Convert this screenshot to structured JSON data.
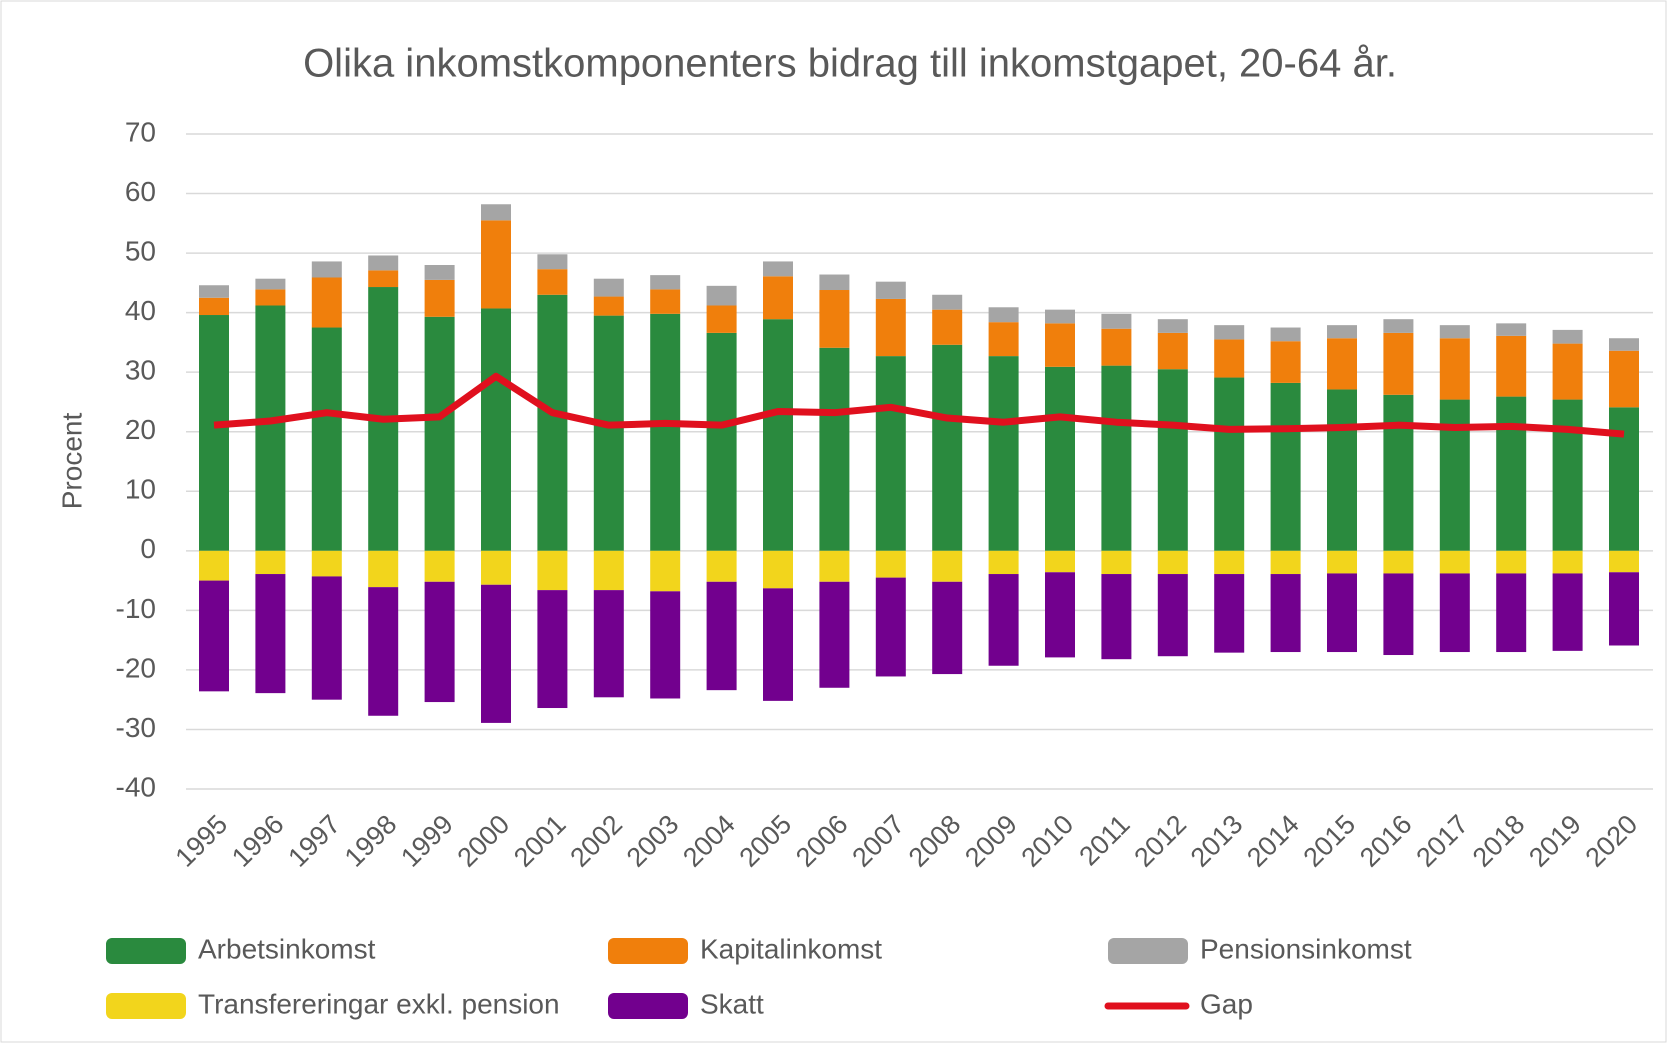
{
  "chart_data": {
    "type": "bar",
    "stacked": true,
    "title": "Olika inkomstkomponenters bidrag till inkomstgapet, 20-64 år.",
    "y_label": "Procent",
    "categories": [
      "1995",
      "1996",
      "1997",
      "1998",
      "1999",
      "2000",
      "2001",
      "2002",
      "2003",
      "2004",
      "2005",
      "2006",
      "2007",
      "2008",
      "2009",
      "2010",
      "2011",
      "2012",
      "2013",
      "2014",
      "2015",
      "2016",
      "2017",
      "2018",
      "2019",
      "2020"
    ],
    "ylim": [
      -40,
      70
    ],
    "yticks": [
      -40,
      -30,
      -20,
      -10,
      0,
      10,
      20,
      30,
      40,
      50,
      60,
      70
    ],
    "grid": true,
    "legend": "bottom",
    "series": [
      {
        "name": "Arbetsinkomst",
        "color": "#2a8a3e",
        "type": "bar",
        "values": [
          39.6,
          41.2,
          37.5,
          44.3,
          39.3,
          40.7,
          43,
          39.5,
          39.8,
          36.6,
          38.9,
          34.1,
          32.7,
          34.6,
          32.7,
          30.9,
          31.1,
          30.5,
          29.1,
          28.2,
          27.1,
          26.2,
          25.4,
          25.9,
          25.4,
          24.1
        ]
      },
      {
        "name": "Kapitalinkomst",
        "color": "#f07f0c",
        "type": "bar",
        "values": [
          2.9,
          2.7,
          8.4,
          2.8,
          6.2,
          14.8,
          4.3,
          3.2,
          4.1,
          4.6,
          7.2,
          9.7,
          9.6,
          5.9,
          5.7,
          7.3,
          6.2,
          6.1,
          6.4,
          7,
          8.6,
          10.4,
          10.3,
          10.2,
          9.4,
          9.5
        ]
      },
      {
        "name": "Pensionsinkomst",
        "color": "#a5a5a5",
        "type": "bar",
        "values": [
          2.1,
          1.8,
          2.7,
          2.5,
          2.5,
          2.7,
          2.5,
          3,
          2.4,
          3.3,
          2.5,
          2.6,
          2.9,
          2.5,
          2.5,
          2.3,
          2.5,
          2.3,
          2.4,
          2.3,
          2.2,
          2.3,
          2.2,
          2.1,
          2.3,
          2.1
        ]
      },
      {
        "name": "Transfereringar exkl. pension",
        "color": "#f2d51c",
        "type": "bar",
        "values": [
          -5,
          -3.9,
          -4.3,
          -6.1,
          -5.2,
          -5.7,
          -6.6,
          -6.6,
          -6.8,
          -5.2,
          -6.3,
          -5.2,
          -4.5,
          -5.2,
          -3.9,
          -3.6,
          -3.9,
          -3.9,
          -3.9,
          -3.9,
          -3.8,
          -3.8,
          -3.8,
          -3.8,
          -3.8,
          -3.6
        ]
      },
      {
        "name": "Skatt",
        "color": "#72008e",
        "type": "bar",
        "values": [
          -18.6,
          -20,
          -20.7,
          -21.6,
          -20.2,
          -23.2,
          -19.8,
          -18,
          -18,
          -18.2,
          -18.9,
          -17.8,
          -16.6,
          -15.5,
          -15.4,
          -14.3,
          -14.3,
          -13.8,
          -13.2,
          -13.1,
          -13.2,
          -13.7,
          -13.2,
          -13.2,
          -13,
          -12.3
        ]
      },
      {
        "name": "Gap",
        "color": "#e0101e",
        "type": "line",
        "values": [
          21.1,
          21.8,
          23.2,
          22.1,
          22.5,
          29.3,
          23.2,
          21.1,
          21.4,
          21.1,
          23.4,
          23.2,
          24.1,
          22.3,
          21.6,
          22.5,
          21.6,
          21.1,
          20.4,
          20.5,
          20.7,
          21.1,
          20.7,
          20.9,
          20.4,
          19.6
        ]
      }
    ]
  }
}
